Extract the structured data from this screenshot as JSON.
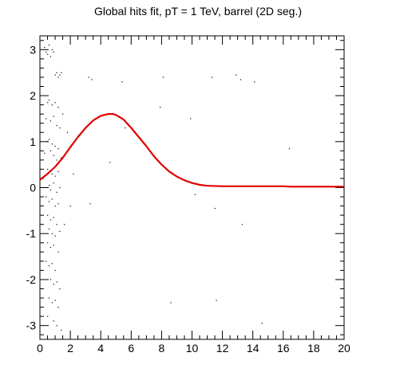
{
  "chart_data": {
    "type": "scatter",
    "title": "Global hits fit, pT = 1 TeV, barrel (2D seg.)",
    "xlabel": "",
    "ylabel": "",
    "xlim": [
      0,
      20
    ],
    "ylim": [
      -3.3,
      3.3
    ],
    "x_ticks": [
      0,
      2,
      4,
      6,
      8,
      10,
      12,
      14,
      16,
      18,
      20
    ],
    "y_ticks": [
      -3,
      -2,
      -1,
      0,
      1,
      2,
      3
    ],
    "grid": false,
    "legend": "none",
    "colors": {
      "fit_curve": "#e00000",
      "points": "#000000",
      "frame": "#000000"
    },
    "series": [
      {
        "kind": "curve",
        "x": [
          0,
          0.5,
          1,
          1.5,
          2,
          2.5,
          3,
          3.5,
          4,
          4.5,
          4.8,
          5,
          5.5,
          6,
          6.5,
          7,
          7.5,
          8,
          8.5,
          9,
          9.5,
          10,
          10.5,
          11,
          12,
          13,
          14,
          15,
          16,
          16.5,
          17,
          18,
          19,
          20
        ],
        "y": [
          0.17,
          0.3,
          0.45,
          0.65,
          0.88,
          1.1,
          1.3,
          1.46,
          1.56,
          1.6,
          1.6,
          1.58,
          1.48,
          1.3,
          1.1,
          0.9,
          0.68,
          0.5,
          0.35,
          0.24,
          0.16,
          0.1,
          0.06,
          0.04,
          0.03,
          0.03,
          0.03,
          0.03,
          0.03,
          0.02,
          0.02,
          0.02,
          0.02,
          0.02
        ]
      },
      {
        "kind": "points",
        "x": [
          0.3,
          0.4,
          0.5,
          0.6,
          0.7,
          0.8,
          0.9,
          1.0,
          1.1,
          1.2,
          1.3,
          1.4,
          0.5,
          0.6,
          0.8,
          1.0,
          1.2,
          0.4,
          0.7,
          0.9,
          1.1,
          1.3,
          0.5,
          0.6,
          0.8,
          1.0,
          1.2,
          0.3,
          0.7,
          0.9,
          1.1,
          1.4,
          0.5,
          0.8,
          1.0,
          1.2,
          0.6,
          0.7,
          0.9,
          1.1,
          1.3,
          0.4,
          0.6,
          0.8,
          1.0,
          1.2,
          0.5,
          0.7,
          0.9,
          1.1,
          0.6,
          0.8,
          1.0,
          1.3,
          0.5,
          0.7,
          0.9,
          1.2,
          0.4,
          0.6,
          0.8,
          1.0,
          0.7,
          0.9,
          1.1,
          1.3,
          0.6,
          0.8,
          1.0,
          1.2,
          0.5,
          0.9,
          1.1,
          1.4,
          1.5,
          1.6,
          1.8,
          2.0,
          2.2,
          3.2,
          3.4,
          3.3,
          4.6,
          5.4,
          5.6,
          7.9,
          8.1,
          8.6,
          9.9,
          10.2,
          11.3,
          11.5,
          11.6,
          12.9,
          13.2,
          13.3,
          14.1,
          14.6,
          16.4
        ],
        "y": [
          3.05,
          2.95,
          2.9,
          3.1,
          2.85,
          3.0,
          2.95,
          2.45,
          2.5,
          2.4,
          2.45,
          2.5,
          1.85,
          1.9,
          1.8,
          1.85,
          1.75,
          1.5,
          1.45,
          1.55,
          1.35,
          1.3,
          1.0,
          1.05,
          0.95,
          0.9,
          0.85,
          0.75,
          0.8,
          0.7,
          0.6,
          0.65,
          0.4,
          0.3,
          0.25,
          0.35,
          0.05,
          -0.05,
          0.1,
          -0.1,
          0.0,
          -0.2,
          -0.3,
          -0.25,
          -0.4,
          -0.35,
          -0.6,
          -0.7,
          -0.65,
          -0.8,
          -0.9,
          -1.0,
          -1.05,
          -0.95,
          -1.2,
          -1.3,
          -1.25,
          -1.4,
          -1.6,
          -1.7,
          -1.65,
          -1.8,
          -2.0,
          -2.1,
          -2.05,
          -2.2,
          -2.4,
          -2.5,
          -2.45,
          -2.6,
          -2.8,
          -2.9,
          -3.0,
          -3.1,
          1.6,
          -0.8,
          1.2,
          -0.4,
          0.3,
          2.4,
          2.35,
          -0.35,
          0.55,
          2.3,
          1.3,
          1.75,
          2.4,
          -2.5,
          1.5,
          -0.15,
          2.4,
          -0.45,
          -2.45,
          2.45,
          2.35,
          -0.8,
          2.3,
          -2.95,
          0.85
        ]
      }
    ]
  }
}
